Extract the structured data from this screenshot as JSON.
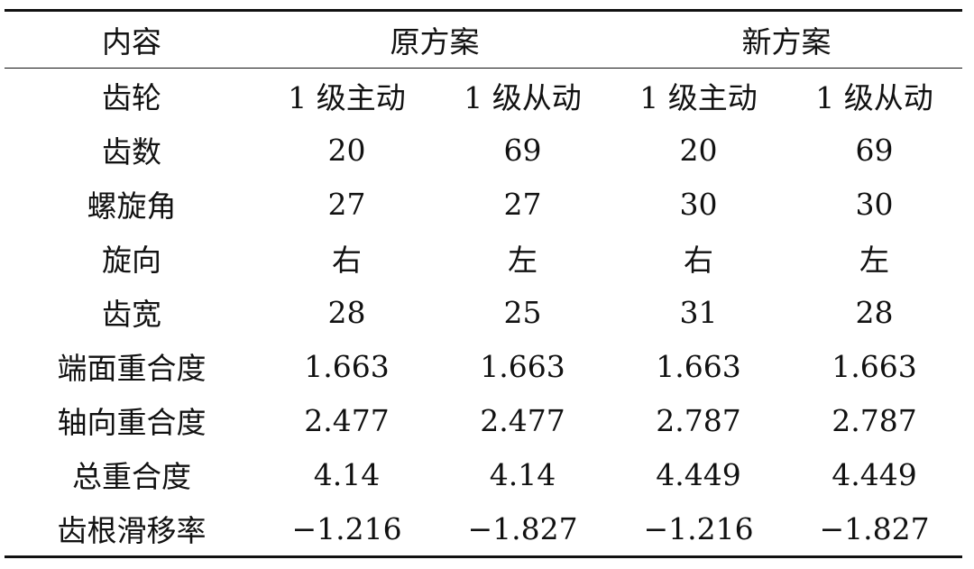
{
  "table": {
    "header": [
      "内容",
      "原方案",
      "新方案"
    ],
    "rows": [
      [
        "齿轮",
        "1 级主动",
        "1 级从动",
        "1 级主动",
        "1 级从动"
      ],
      [
        "齿数",
        "20",
        "69",
        "20",
        "69"
      ],
      [
        "螺旋角",
        "27",
        "27",
        "30",
        "30"
      ],
      [
        "旋向",
        "右",
        "左",
        "右",
        "左"
      ],
      [
        "齿宽",
        "28",
        "25",
        "31",
        "28"
      ],
      [
        "端面重合度",
        "1.663",
        "1.663",
        "1.663",
        "1.663"
      ],
      [
        "轴向重合度",
        "2.477",
        "2.477",
        "2.787",
        "2.787"
      ],
      [
        "总重合度",
        "4.14",
        "4.14",
        "4.449",
        "4.449"
      ],
      [
        "齿根滑移率",
        "−1.216",
        "−1.827",
        "−1.216",
        "−1.827"
      ]
    ]
  }
}
